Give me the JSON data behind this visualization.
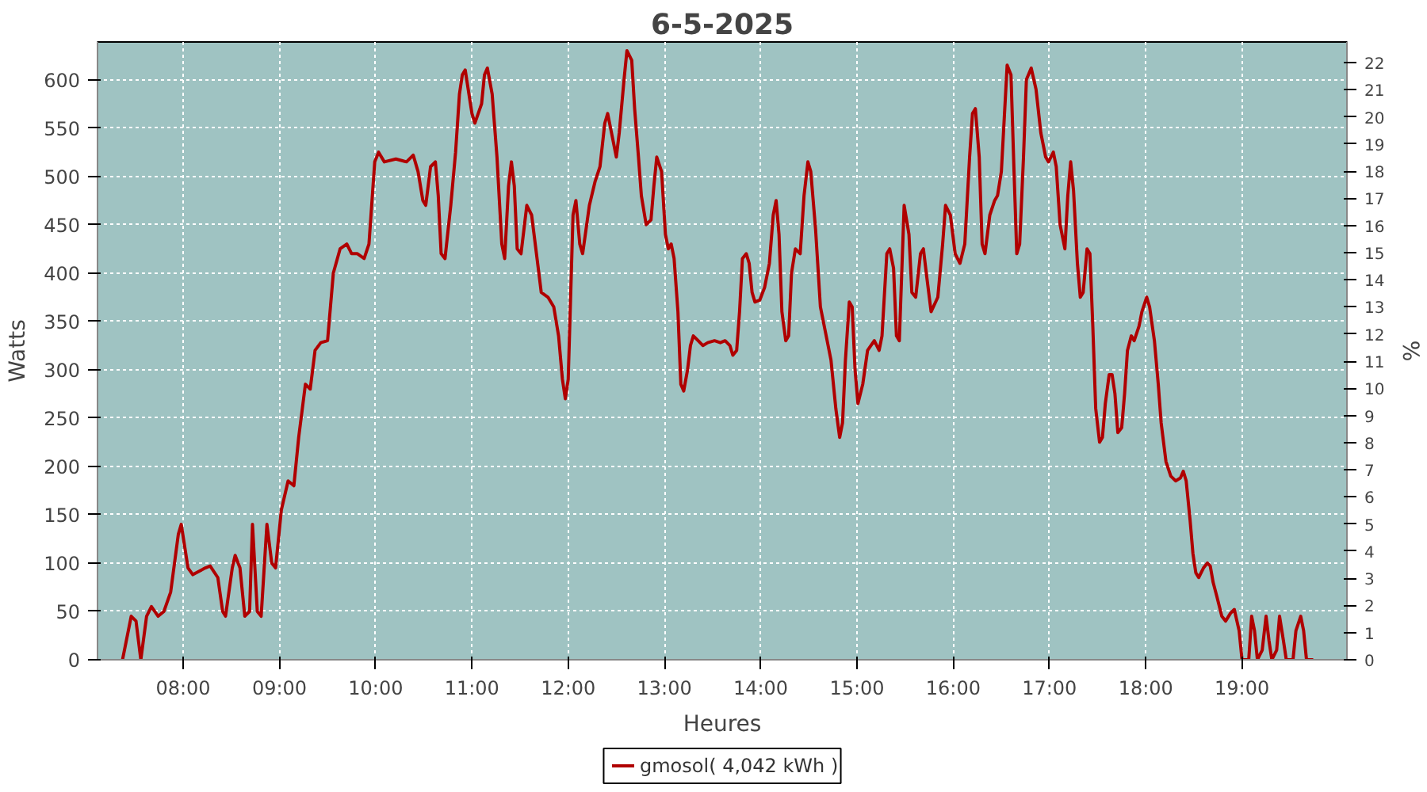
{
  "chart_data": {
    "type": "line",
    "title": "6-5-2025",
    "xlabel": "Heures",
    "ylabel": "Watts",
    "y2label": "%",
    "xlim": [
      7.11,
      20.09
    ],
    "ylim": [
      0,
      639
    ],
    "y2lim": [
      0,
      22.76
    ],
    "xticks": [
      {
        "value": 8,
        "label": "08:00"
      },
      {
        "value": 9,
        "label": "09:00"
      },
      {
        "value": 10,
        "label": "10:00"
      },
      {
        "value": 11,
        "label": "11:00"
      },
      {
        "value": 12,
        "label": "12:00"
      },
      {
        "value": 13,
        "label": "13:00"
      },
      {
        "value": 14,
        "label": "14:00"
      },
      {
        "value": 15,
        "label": "15:00"
      },
      {
        "value": 16,
        "label": "16:00"
      },
      {
        "value": 17,
        "label": "17:00"
      },
      {
        "value": 18,
        "label": "18:00"
      },
      {
        "value": 19,
        "label": "19:00"
      }
    ],
    "yticks": [
      0,
      50,
      100,
      150,
      200,
      250,
      300,
      350,
      400,
      450,
      500,
      550,
      600
    ],
    "y2ticks": [
      0,
      1,
      2,
      3,
      4,
      5,
      6,
      7,
      8,
      9,
      10,
      11,
      12,
      13,
      14,
      15,
      16,
      17,
      18,
      19,
      20,
      21,
      22
    ],
    "grid": true,
    "legend": "bottom",
    "marker": "none",
    "line_style": "solid",
    "series": [
      {
        "name": "gmosol( 4,042 kWh )",
        "color": "#b00000",
        "x": [
          7.37,
          7.46,
          7.51,
          7.56,
          7.62,
          7.67,
          7.74,
          7.8,
          7.87,
          7.95,
          7.98,
          8.05,
          8.1,
          8.23,
          8.28,
          8.36,
          8.41,
          8.44,
          8.51,
          8.54,
          8.59,
          8.64,
          8.69,
          8.72,
          8.77,
          8.81,
          8.87,
          8.92,
          8.96,
          9.02,
          9.09,
          9.15,
          9.2,
          9.27,
          9.32,
          9.37,
          9.43,
          9.5,
          9.56,
          9.63,
          9.7,
          9.75,
          9.81,
          9.88,
          9.93,
          9.99,
          10.03,
          10.09,
          10.21,
          10.32,
          10.39,
          10.44,
          10.49,
          10.52,
          10.57,
          10.62,
          10.65,
          10.68,
          10.72,
          10.78,
          10.83,
          10.87,
          10.9,
          10.93,
          11.0,
          11.03,
          11.1,
          11.13,
          11.16,
          11.21,
          11.26,
          11.31,
          11.34,
          11.38,
          11.41,
          11.44,
          11.47,
          11.51,
          11.57,
          11.62,
          11.67,
          11.72,
          11.79,
          11.85,
          11.9,
          11.94,
          11.97,
          12.0,
          12.05,
          12.08,
          12.12,
          12.15,
          12.22,
          12.28,
          12.33,
          12.38,
          12.41,
          12.46,
          12.5,
          12.53,
          12.58,
          12.61,
          12.66,
          12.69,
          12.73,
          12.76,
          12.81,
          12.86,
          12.89,
          12.92,
          12.97,
          13.01,
          13.04,
          13.07,
          13.1,
          13.14,
          13.17,
          13.2,
          13.24,
          13.27,
          13.3,
          13.35,
          13.4,
          13.45,
          13.52,
          13.58,
          13.63,
          13.68,
          13.71,
          13.75,
          13.78,
          13.81,
          13.85,
          13.88,
          13.91,
          13.94,
          13.99,
          14.04,
          14.09,
          14.13,
          14.16,
          14.19,
          14.22,
          14.26,
          14.29,
          14.32,
          14.36,
          14.41,
          14.45,
          14.49,
          14.52,
          14.57,
          14.62,
          14.69,
          14.73,
          14.78,
          14.82,
          14.85,
          14.88,
          14.92,
          14.95,
          14.98,
          15.01,
          15.06,
          15.11,
          15.18,
          15.23,
          15.26,
          15.31,
          15.34,
          15.38,
          15.41,
          15.44,
          15.49,
          15.54,
          15.57,
          15.61,
          15.66,
          15.69,
          15.72,
          15.77,
          15.84,
          15.89,
          15.92,
          15.97,
          16.02,
          16.07,
          16.12,
          16.17,
          16.2,
          16.23,
          16.27,
          16.3,
          16.33,
          16.38,
          16.43,
          16.46,
          16.5,
          16.53,
          16.56,
          16.6,
          16.63,
          16.66,
          16.69,
          16.73,
          16.76,
          16.81,
          16.86,
          16.91,
          16.96,
          16.99,
          17.04,
          17.07,
          17.11,
          17.16,
          17.19,
          17.22,
          17.25,
          17.29,
          17.32,
          17.35,
          17.39,
          17.42,
          17.45,
          17.48,
          17.52,
          17.55,
          17.58,
          17.62,
          17.65,
          17.68,
          17.71,
          17.75,
          17.78,
          17.81,
          17.85,
          17.88,
          17.93,
          17.96,
          18.01,
          18.04,
          18.09,
          18.13,
          18.16,
          18.21,
          18.26,
          18.31,
          18.36,
          18.39,
          18.42,
          18.46,
          18.49,
          18.52,
          18.55,
          18.6,
          18.64,
          18.67,
          18.7,
          18.74,
          18.79,
          18.83,
          18.88,
          18.92,
          18.97,
          19.0,
          19.07,
          19.1,
          19.13,
          19.16,
          19.21,
          19.25,
          19.28,
          19.31,
          19.36,
          19.39,
          19.43,
          19.46,
          19.53,
          19.56,
          19.61,
          19.64,
          19.67,
          19.74
        ],
        "values": [
          0,
          45,
          40,
          0,
          45,
          55,
          45,
          50,
          70,
          130,
          140,
          95,
          88,
          95,
          97,
          85,
          50,
          45,
          95,
          108,
          95,
          45,
          50,
          140,
          50,
          45,
          140,
          100,
          95,
          155,
          185,
          180,
          230,
          285,
          280,
          320,
          328,
          330,
          400,
          425,
          430,
          420,
          420,
          415,
          430,
          515,
          525,
          515,
          518,
          515,
          522,
          505,
          475,
          470,
          510,
          515,
          480,
          420,
          415,
          470,
          525,
          585,
          605,
          610,
          565,
          555,
          575,
          605,
          612,
          585,
          520,
          430,
          415,
          490,
          515,
          490,
          425,
          420,
          470,
          460,
          420,
          380,
          375,
          365,
          335,
          290,
          270,
          290,
          460,
          475,
          430,
          420,
          470,
          495,
          510,
          555,
          565,
          540,
          520,
          545,
          600,
          630,
          620,
          570,
          520,
          480,
          450,
          455,
          490,
          520,
          505,
          440,
          425,
          430,
          415,
          360,
          285,
          278,
          300,
          325,
          335,
          330,
          325,
          328,
          330,
          328,
          330,
          325,
          315,
          320,
          360,
          415,
          420,
          410,
          380,
          370,
          372,
          385,
          410,
          460,
          475,
          440,
          360,
          330,
          335,
          400,
          425,
          420,
          480,
          515,
          505,
          445,
          365,
          330,
          310,
          260,
          230,
          245,
          310,
          370,
          365,
          300,
          265,
          285,
          320,
          330,
          320,
          335,
          420,
          425,
          405,
          335,
          330,
          470,
          440,
          380,
          375,
          420,
          425,
          400,
          360,
          375,
          430,
          470,
          460,
          420,
          410,
          430,
          520,
          565,
          570,
          520,
          430,
          420,
          460,
          475,
          480,
          505,
          560,
          615,
          605,
          510,
          420,
          430,
          520,
          600,
          612,
          590,
          545,
          520,
          515,
          525,
          510,
          450,
          425,
          480,
          515,
          485,
          410,
          375,
          380,
          425,
          420,
          345,
          260,
          225,
          230,
          265,
          295,
          295,
          275,
          235,
          240,
          275,
          320,
          335,
          330,
          345,
          360,
          375,
          365,
          330,
          285,
          245,
          205,
          190,
          185,
          188,
          195,
          185,
          145,
          110,
          90,
          85,
          95,
          100,
          97,
          80,
          65,
          45,
          40,
          48,
          52,
          30,
          0,
          0,
          45,
          30,
          0,
          10,
          45,
          20,
          0,
          10,
          45,
          20,
          0,
          0,
          30,
          45,
          30,
          0,
          0
        ]
      }
    ]
  }
}
